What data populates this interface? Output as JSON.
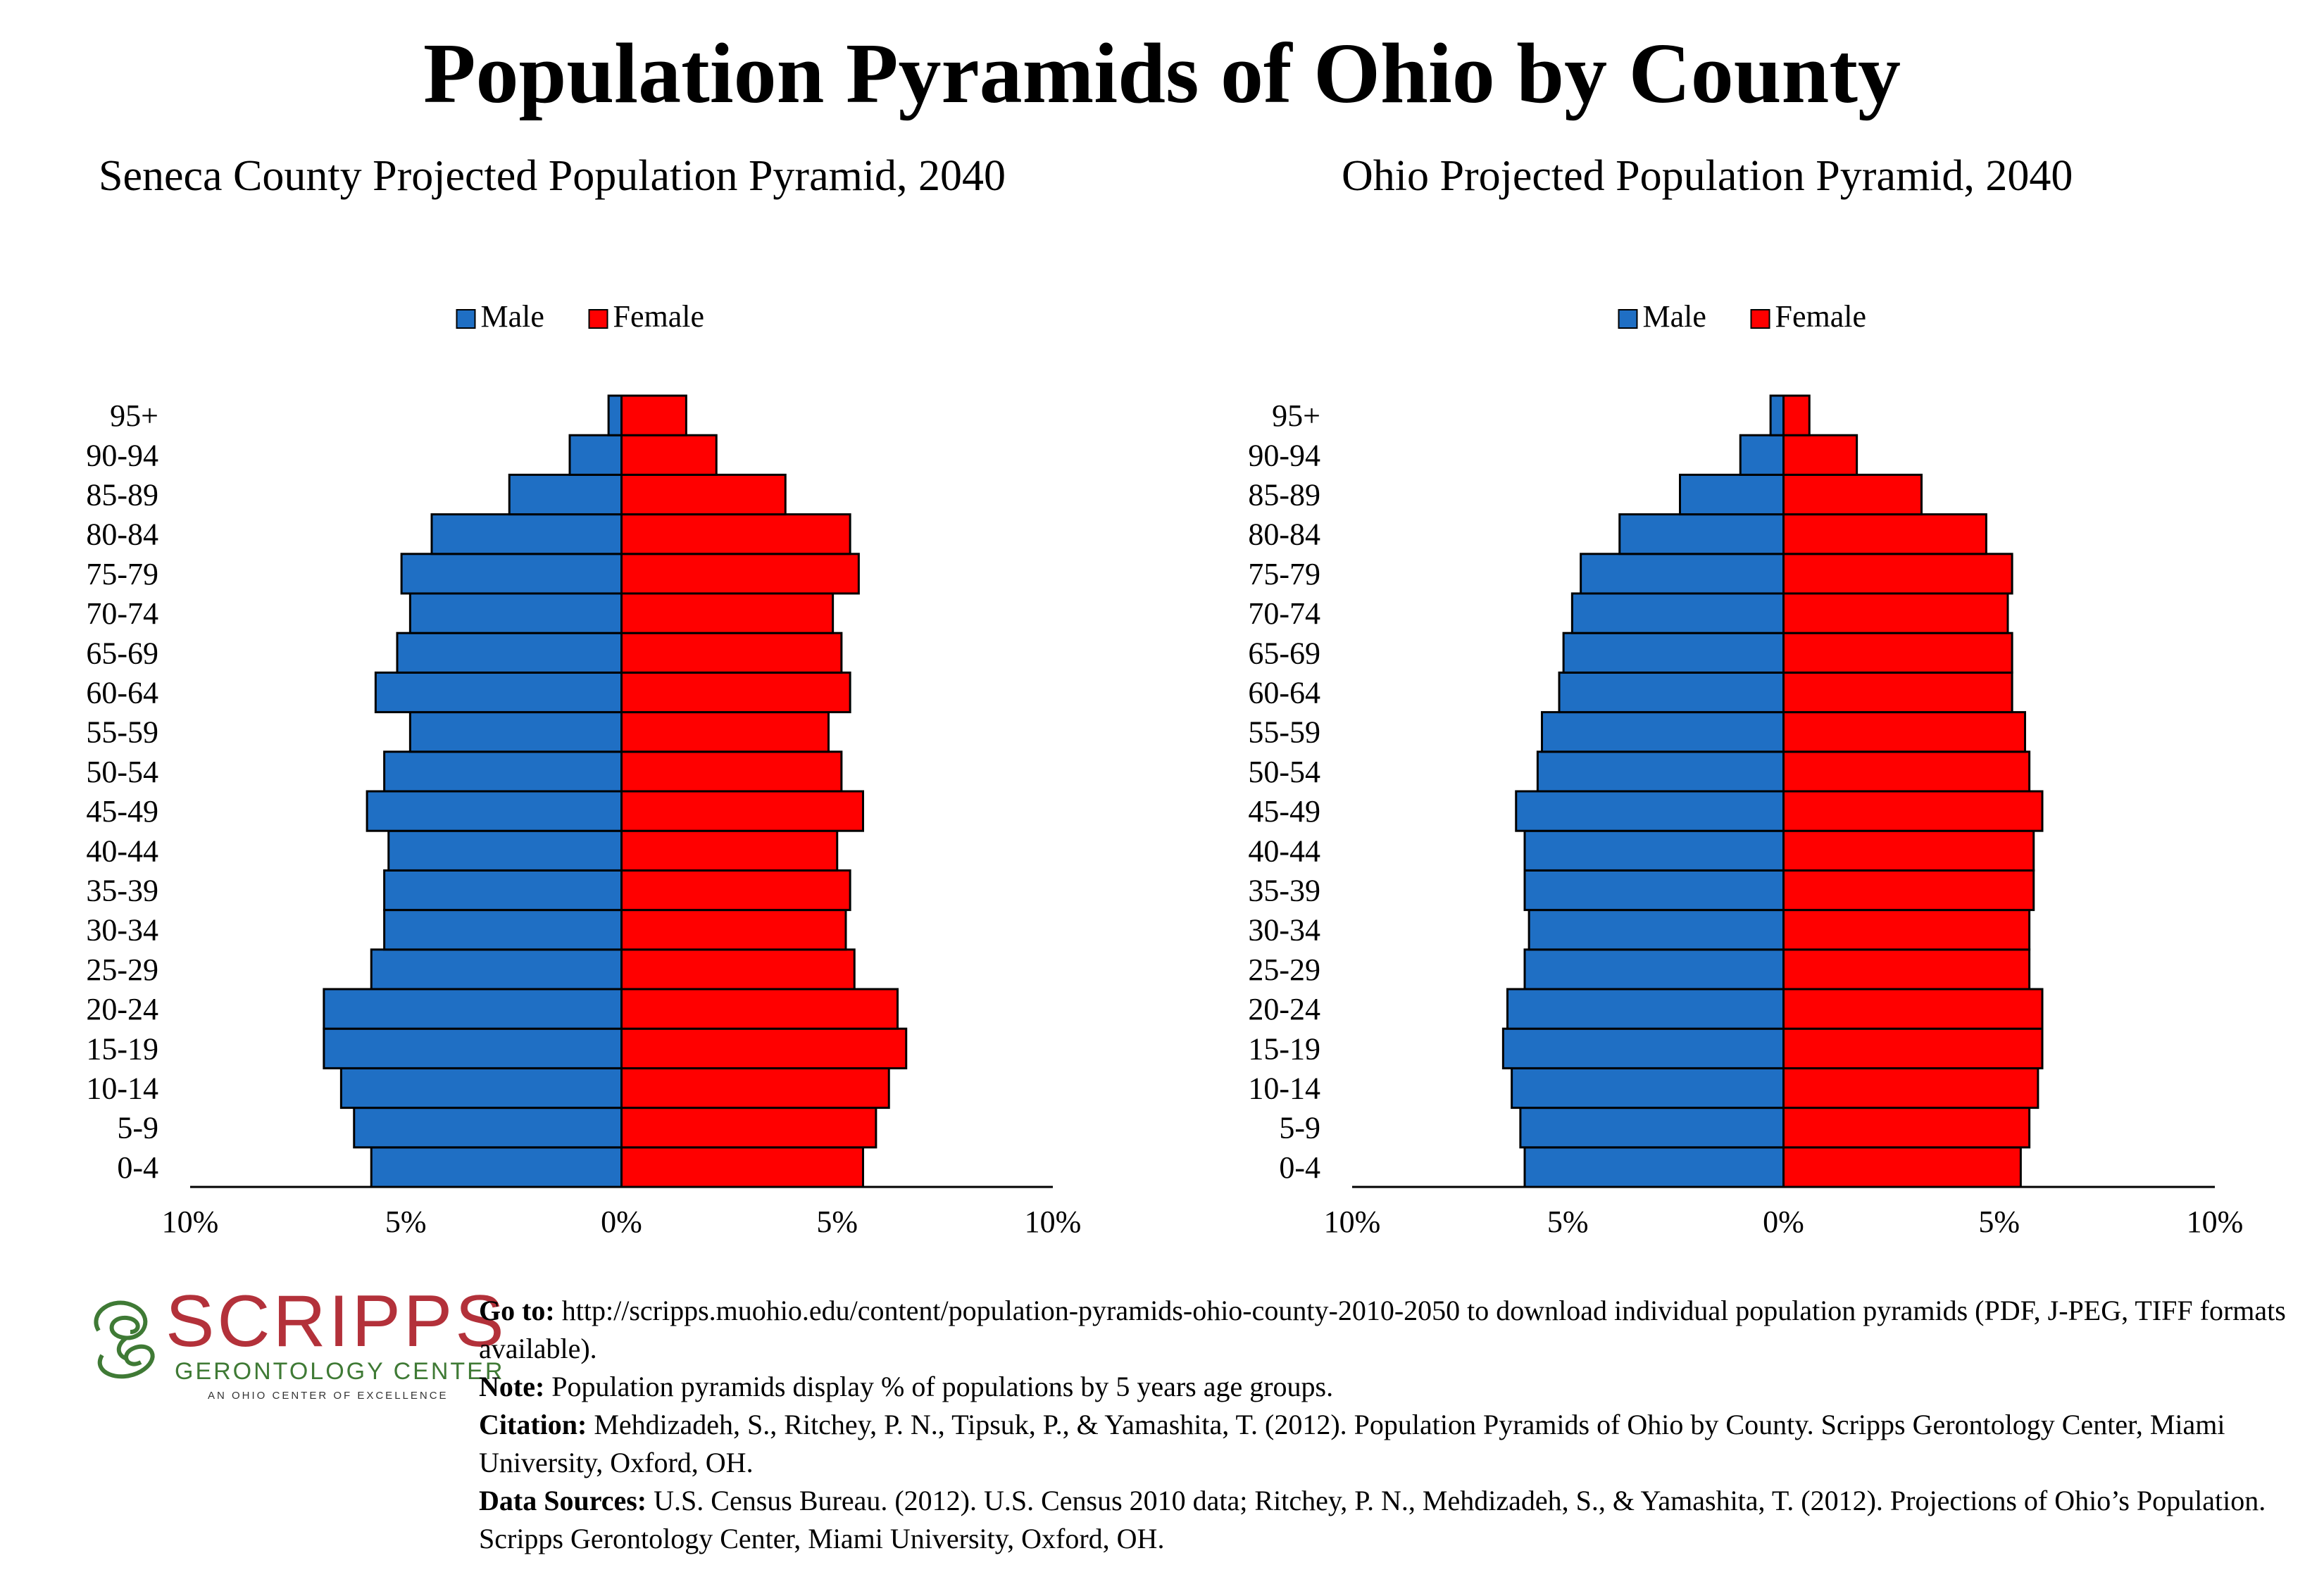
{
  "header": {
    "title": "Population Pyramids of Ohio by County"
  },
  "colors": {
    "male": "#1f6fc4",
    "female": "#ff0000",
    "outline": "#000000"
  },
  "chart_data": [
    {
      "type": "bar",
      "title": "Seneca County Projected Population Pyramid, 2040",
      "legend": [
        "Male",
        "Female"
      ],
      "legend_position": "top",
      "categories": [
        "0-4",
        "5-9",
        "10-14",
        "15-19",
        "20-24",
        "25-29",
        "30-34",
        "35-39",
        "40-44",
        "45-49",
        "50-54",
        "55-59",
        "60-64",
        "65-69",
        "70-74",
        "75-79",
        "80-84",
        "85-89",
        "90-94",
        "95+"
      ],
      "series": [
        {
          "name": "Male",
          "values": [
            5.8,
            6.2,
            6.5,
            6.9,
            6.9,
            5.8,
            5.5,
            5.5,
            5.4,
            5.9,
            5.5,
            4.9,
            5.7,
            5.2,
            4.9,
            5.1,
            4.4,
            2.6,
            1.2,
            0.3
          ]
        },
        {
          "name": "Female",
          "values": [
            5.6,
            5.9,
            6.2,
            6.6,
            6.4,
            5.4,
            5.2,
            5.3,
            5.0,
            5.6,
            5.1,
            4.8,
            5.3,
            5.1,
            4.9,
            5.5,
            5.3,
            3.8,
            2.2,
            1.5
          ]
        }
      ],
      "x_ticks": [
        "10%",
        "5%",
        "0%",
        "5%",
        "10%"
      ],
      "xlim": [
        -10,
        10
      ],
      "grid": false
    },
    {
      "type": "bar",
      "title": "Ohio Projected Population Pyramid, 2040",
      "legend": [
        "Male",
        "Female"
      ],
      "legend_position": "top",
      "categories": [
        "0-4",
        "5-9",
        "10-14",
        "15-19",
        "20-24",
        "25-29",
        "30-34",
        "35-39",
        "40-44",
        "45-49",
        "50-54",
        "55-59",
        "60-64",
        "65-69",
        "70-74",
        "75-79",
        "80-84",
        "85-89",
        "90-94",
        "95+"
      ],
      "series": [
        {
          "name": "Male",
          "values": [
            6.0,
            6.1,
            6.3,
            6.5,
            6.4,
            6.0,
            5.9,
            6.0,
            6.0,
            6.2,
            5.7,
            5.6,
            5.2,
            5.1,
            4.9,
            4.7,
            3.8,
            2.4,
            1.0,
            0.3
          ]
        },
        {
          "name": "Female",
          "values": [
            5.5,
            5.7,
            5.9,
            6.0,
            6.0,
            5.7,
            5.7,
            5.8,
            5.8,
            6.0,
            5.7,
            5.6,
            5.3,
            5.3,
            5.2,
            5.3,
            4.7,
            3.2,
            1.7,
            0.6
          ]
        }
      ],
      "x_ticks": [
        "10%",
        "5%",
        "0%",
        "5%",
        "10%"
      ],
      "xlim": [
        -10,
        10
      ],
      "grid": false
    }
  ],
  "logo": {
    "name": "SCRIPPS",
    "subtitle": "GERONTOLOGY CENTER",
    "tagline": "AN OHIO CENTER OF EXCELLENCE"
  },
  "notes": {
    "goto_label": "Go to:",
    "goto_text": "http://scripps.muohio.edu/content/population-pyramids-ohio-county-2010-2050 to download individual population pyramids (PDF, J-PEG, TIFF formats available).",
    "note_label": "Note:",
    "note_text": "Population pyramids display % of populations by 5 years age groups.",
    "citation_label": "Citation:",
    "citation_text": "Mehdizadeh, S., Ritchey, P. N., Tipsuk, P., & Yamashita, T. (2012). Population Pyramids of Ohio by County. Scripps Gerontology Center, Miami University, Oxford, OH.",
    "sources_label": "Data Sources:",
    "sources_text": "U.S. Census Bureau. (2012). U.S. Census 2010 data; Ritchey, P. N., Mehdizadeh, S., & Yamashita, T. (2012). Projections of Ohio’s Population. Scripps Gerontology Center, Miami University, Oxford, OH."
  }
}
